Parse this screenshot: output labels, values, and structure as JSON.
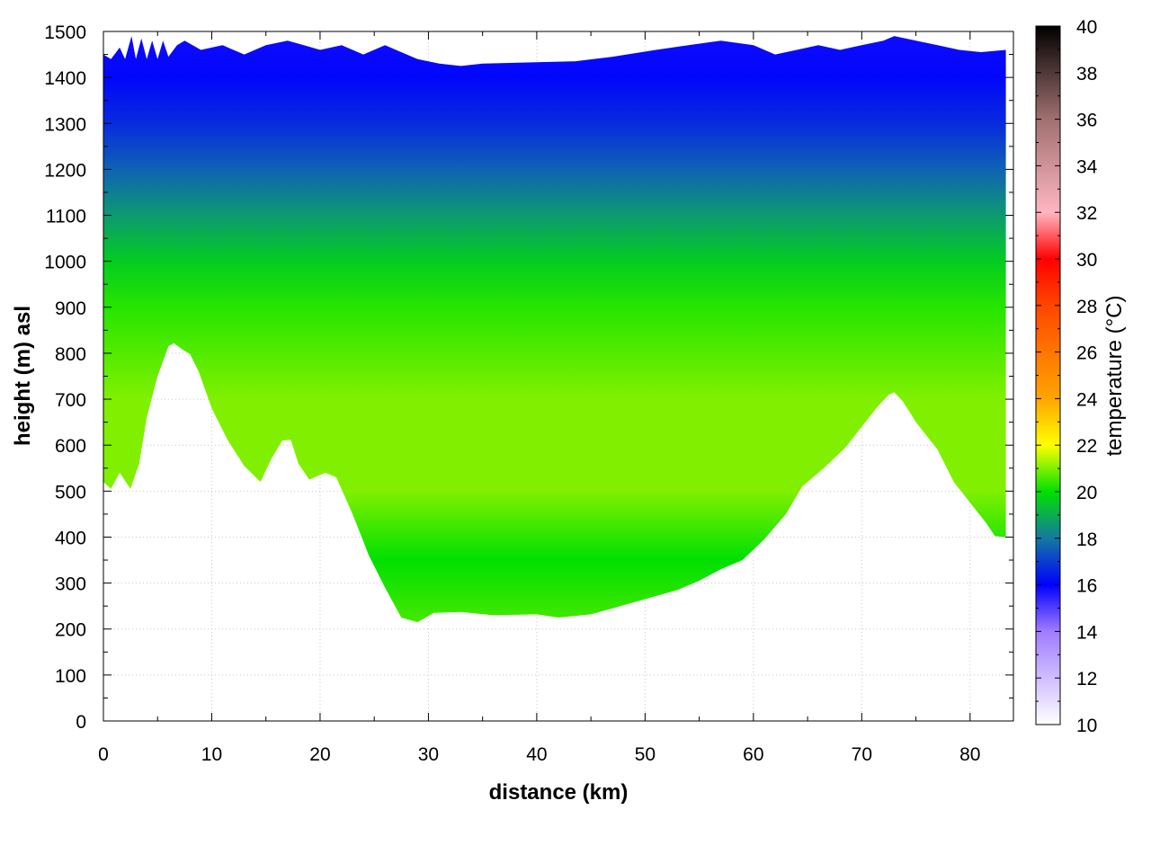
{
  "chart_data": {
    "type": "heatmap",
    "title": "",
    "xlabel": "distance (km)",
    "ylabel": "height (m) asl",
    "colorbar_label": "temperature (°C)",
    "xlim": [
      0,
      84
    ],
    "ylim": [
      0,
      1500
    ],
    "zlim": [
      10,
      40
    ],
    "grid": true,
    "x_ticks": [
      0,
      10,
      20,
      30,
      40,
      50,
      60,
      70,
      80
    ],
    "y_ticks": [
      0,
      100,
      200,
      300,
      400,
      500,
      600,
      700,
      800,
      900,
      1000,
      1100,
      1200,
      1300,
      1400,
      1500
    ],
    "z_ticks": [
      10,
      12,
      14,
      16,
      18,
      20,
      22,
      24,
      26,
      28,
      30,
      32,
      34,
      36,
      38,
      40
    ],
    "colormap": [
      {
        "t": 10,
        "color": "#ffffff"
      },
      {
        "t": 14,
        "color": "#a07cff"
      },
      {
        "t": 16,
        "color": "#0000ff"
      },
      {
        "t": 18,
        "color": "#147aa0"
      },
      {
        "t": 20,
        "color": "#00e000"
      },
      {
        "t": 22,
        "color": "#ffff00"
      },
      {
        "t": 24,
        "color": "#ffa500"
      },
      {
        "t": 28,
        "color": "#ff4500"
      },
      {
        "t": 30,
        "color": "#ff0000"
      },
      {
        "t": 32,
        "color": "#ffb6c1"
      },
      {
        "t": 36,
        "color": "#a07070"
      },
      {
        "t": 40,
        "color": "#000000"
      }
    ],
    "terrain_profile": {
      "x": [
        0,
        0.7,
        1.5,
        2.5,
        3.3,
        4.0,
        5.0,
        6.0,
        6.5,
        7.3,
        8.0,
        8.8,
        10.0,
        11.5,
        13.0,
        14.5,
        15.5,
        16.5,
        17.3,
        18.0,
        19.0,
        20.5,
        21.5,
        23.0,
        24.5,
        26.0,
        27.5,
        29.0,
        30.5,
        33.0,
        36.0,
        40.0,
        42.0,
        45.0,
        47.0,
        50.0,
        53.0,
        55.0,
        57.0,
        59.0,
        61.0,
        63.0,
        64.5,
        66.5,
        68.5,
        70.0,
        71.5,
        72.5,
        73.0,
        73.8,
        75.0,
        77.0,
        78.5,
        80.0,
        81.5,
        82.3,
        83.3
      ],
      "z": [
        520,
        505,
        540,
        505,
        560,
        660,
        750,
        815,
        822,
        808,
        798,
        760,
        680,
        610,
        555,
        520,
        570,
        610,
        612,
        560,
        525,
        540,
        530,
        450,
        360,
        290,
        225,
        215,
        235,
        237,
        230,
        232,
        225,
        232,
        245,
        265,
        285,
        305,
        330,
        350,
        395,
        450,
        510,
        550,
        595,
        640,
        685,
        710,
        715,
        695,
        650,
        590,
        520,
        475,
        430,
        402,
        400
      ]
    },
    "top_profile": {
      "x": [
        0,
        0.7,
        1.5,
        2.0,
        2.6,
        3.0,
        3.5,
        4.0,
        4.5,
        5.0,
        5.5,
        6.0,
        6.8,
        7.5,
        9.0,
        11.0,
        13.0,
        15.0,
        17.0,
        18.5,
        20.0,
        22.0,
        24.0,
        26.0,
        27.0,
        29.0,
        31.0,
        33.0,
        35.0,
        43.5,
        47.0,
        51.0,
        54.0,
        57.0,
        60.0,
        62.0,
        64.0,
        66.0,
        68.0,
        70.0,
        72.0,
        73.0,
        75.0,
        77.0,
        79.0,
        81.0,
        83.3
      ],
      "z": [
        1450,
        1440,
        1465,
        1440,
        1490,
        1440,
        1485,
        1440,
        1480,
        1440,
        1480,
        1445,
        1470,
        1480,
        1460,
        1470,
        1450,
        1470,
        1480,
        1470,
        1460,
        1470,
        1450,
        1470,
        1460,
        1440,
        1430,
        1425,
        1430,
        1435,
        1445,
        1460,
        1470,
        1480,
        1470,
        1450,
        1460,
        1470,
        1460,
        1470,
        1480,
        1490,
        1480,
        1470,
        1460,
        1455,
        1460
      ]
    },
    "temperature_profile": [
      {
        "z": 200,
        "t": 20.6
      },
      {
        "z": 350,
        "t": 20.0
      },
      {
        "z": 500,
        "t": 21.0
      },
      {
        "z": 700,
        "t": 21.0
      },
      {
        "z": 900,
        "t": 20.3
      },
      {
        "z": 1000,
        "t": 19.6
      },
      {
        "z": 1100,
        "t": 18.6
      },
      {
        "z": 1200,
        "t": 17.6
      },
      {
        "z": 1300,
        "t": 16.7
      },
      {
        "z": 1400,
        "t": 16.1
      },
      {
        "z": 1500,
        "t": 15.8
      }
    ]
  }
}
